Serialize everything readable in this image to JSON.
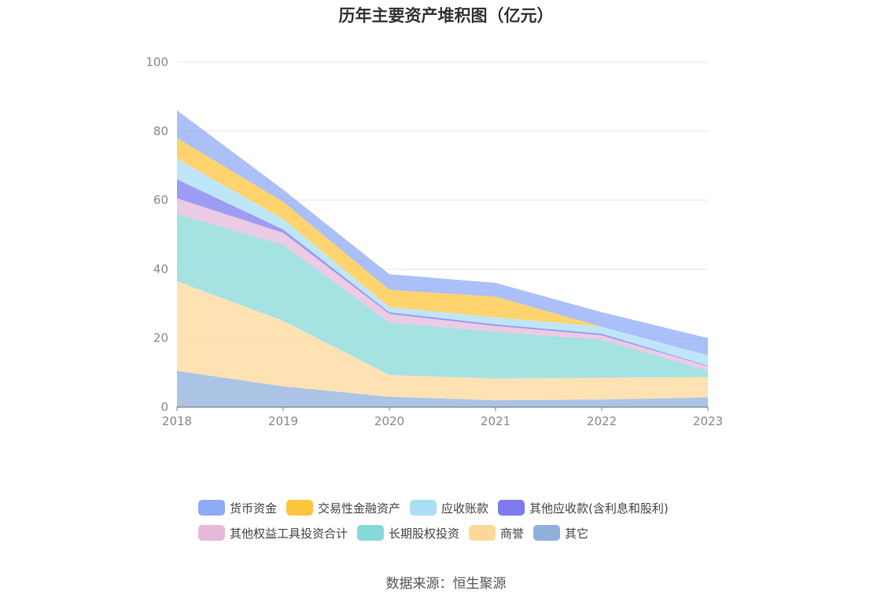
{
  "chart_data": {
    "type": "area",
    "stacked": true,
    "title": "历年主要资产堆积图（亿元）",
    "x": [
      "2018",
      "2019",
      "2020",
      "2021",
      "2022",
      "2023"
    ],
    "yticks": [
      "0",
      "20",
      "40",
      "60",
      "80",
      "100"
    ],
    "ylim": [
      0,
      100
    ],
    "grid": true,
    "legend_position": "bottom",
    "series": [
      {
        "name": "其它",
        "color": "#8fb0dc",
        "values": [
          10.5,
          6.0,
          3.0,
          2.0,
          2.2,
          2.8
        ]
      },
      {
        "name": "商誉",
        "color": "#ffd899",
        "values": [
          26.0,
          19.0,
          6.3,
          6.3,
          6.3,
          5.9
        ]
      },
      {
        "name": "长期股权投资",
        "color": "#87d8d8",
        "values": [
          19.5,
          22.0,
          15.2,
          13.5,
          11.0,
          1.9
        ]
      },
      {
        "name": "其他权益工具投资合计",
        "color": "#e6b9db",
        "values": [
          4.5,
          3.5,
          2.5,
          1.7,
          1.3,
          1.2
        ]
      },
      {
        "name": "其他应收款(含利息和股利)",
        "color": "#7c7cf0",
        "values": [
          5.5,
          1.0,
          0.5,
          0.5,
          0.5,
          0.2
        ]
      },
      {
        "name": "应收账款",
        "color": "#a9def5",
        "values": [
          6.0,
          3.0,
          1.5,
          2.0,
          2.0,
          3.0
        ]
      },
      {
        "name": "交易性金融资产",
        "color": "#ffc53d",
        "values": [
          6.0,
          5.0,
          5.0,
          6.0,
          0.0,
          0.0
        ]
      },
      {
        "name": "货币资金",
        "color": "#8faaf7",
        "values": [
          8.0,
          3.5,
          4.5,
          4.0,
          4.2,
          5.0
        ]
      }
    ],
    "source": "数据来源：恒生聚源"
  }
}
